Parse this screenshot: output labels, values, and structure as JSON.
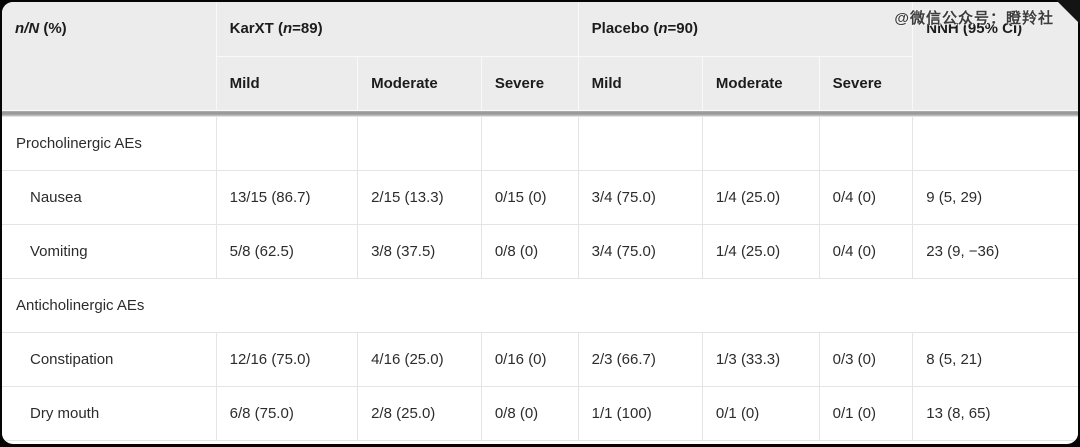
{
  "watermark": "@微信公众号：瞪羚社",
  "colors": {
    "page_bg": "#050505",
    "header_bg": "#ececec",
    "body_border": "#e4e4e4",
    "divider": "#9a9a9a"
  },
  "table": {
    "header": {
      "corner": {
        "italic": "n/N",
        "rest": " (%)"
      },
      "karxt": {
        "pre": "KarXT (",
        "italic": "n",
        "post": "=89)"
      },
      "placebo": {
        "pre": "Placebo (",
        "italic": "n",
        "post": "=90)"
      },
      "nnh": "NNH (95% CI)",
      "severity": [
        "Mild",
        "Moderate",
        "Severe",
        "Mild",
        "Moderate",
        "Severe"
      ]
    },
    "rows": [
      {
        "type": "group",
        "label": "Procholinergic AEs"
      },
      {
        "type": "data",
        "label": "Nausea",
        "cells": [
          "13/15 (86.7)",
          "2/15 (13.3)",
          "0/15 (0)",
          "3/4 (75.0)",
          "1/4 (25.0)",
          "0/4 (0)",
          "9 (5, 29)"
        ]
      },
      {
        "type": "data",
        "label": "Vomiting",
        "cells": [
          "5/8 (62.5)",
          "3/8 (37.5)",
          "0/8 (0)",
          "3/4 (75.0)",
          "1/4 (25.0)",
          "0/4 (0)",
          "23 (9, −36)"
        ]
      },
      {
        "type": "group_span",
        "label": "Anticholinergic AEs"
      },
      {
        "type": "data",
        "label": "Constipation",
        "cells": [
          "12/16 (75.0)",
          "4/16 (25.0)",
          "0/16 (0)",
          "2/3 (66.7)",
          "1/3 (33.3)",
          "0/3 (0)",
          "8 (5, 21)"
        ]
      },
      {
        "type": "data",
        "label": "Dry mouth",
        "cells": [
          "6/8 (75.0)",
          "2/8 (25.0)",
          "0/8 (0)",
          "1/1 (100)",
          "0/1 (0)",
          "0/1 (0)",
          "13 (8, 65)"
        ]
      }
    ]
  }
}
